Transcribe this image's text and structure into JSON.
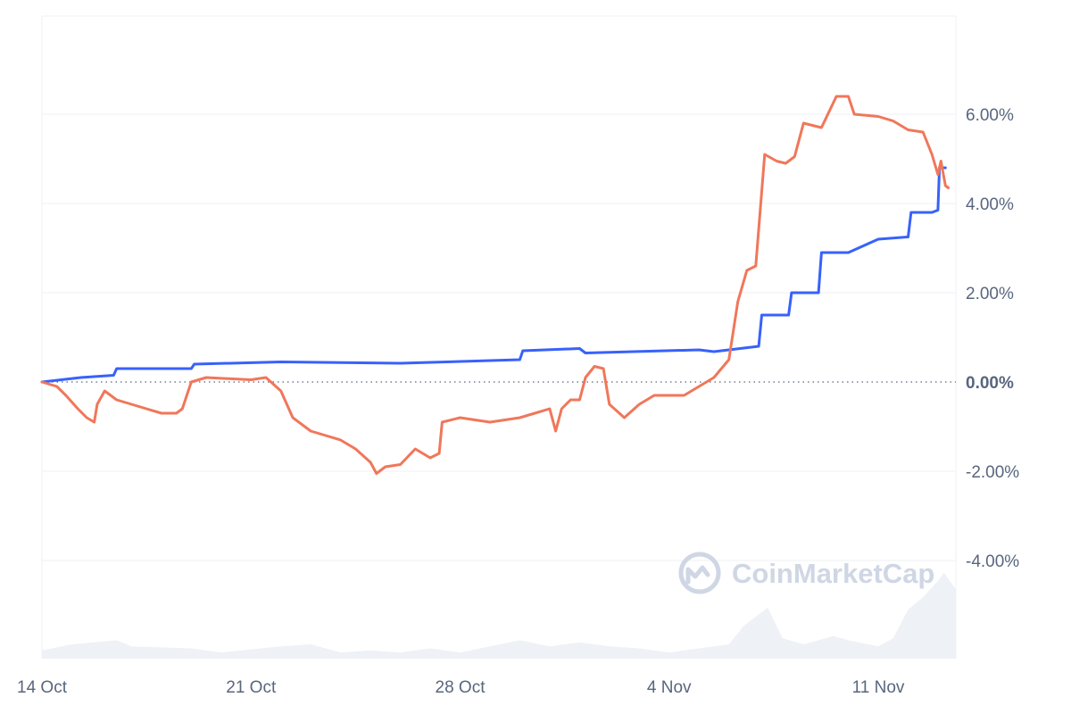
{
  "watermark": {
    "text": "CoinMarketCap"
  },
  "colors": {
    "background": "#ffffff",
    "grid": "#eff2f5",
    "zero_line": "#58667e",
    "volume": "#eef1f5",
    "watermark": "#cfd6e4",
    "series_blue": "#3861fb",
    "series_orange": "#f0775a"
  },
  "chart_data": {
    "type": "line",
    "title": "",
    "xlabel": "",
    "ylabel": "",
    "x_ticks": [
      {
        "label": "14 Oct",
        "day": 0
      },
      {
        "label": "21 Oct",
        "day": 7
      },
      {
        "label": "28 Oct",
        "day": 14
      },
      {
        "label": "4 Nov",
        "day": 21
      },
      {
        "label": "11 Nov",
        "day": 28
      }
    ],
    "y_ticks": [
      {
        "label": "6.00%",
        "value": 6
      },
      {
        "label": "4.00%",
        "value": 4
      },
      {
        "label": "2.00%",
        "value": 2
      },
      {
        "label": "0.00%",
        "value": 0,
        "bold": true
      },
      {
        "label": "-2.00%",
        "value": -2
      },
      {
        "label": "-4.00%",
        "value": -4
      }
    ],
    "xlim": [
      0,
      30.6
    ],
    "ylim": [
      -6.2,
      8.2
    ],
    "grid": true,
    "series": [
      {
        "color": "#3861fb",
        "points": [
          [
            0,
            0
          ],
          [
            1.3,
            0.1
          ],
          [
            2.4,
            0.15
          ],
          [
            2.5,
            0.3
          ],
          [
            5,
            0.3
          ],
          [
            5.1,
            0.4
          ],
          [
            8,
            0.45
          ],
          [
            12,
            0.42
          ],
          [
            16,
            0.5
          ],
          [
            16.1,
            0.7
          ],
          [
            18,
            0.75
          ],
          [
            18.2,
            0.65
          ],
          [
            22,
            0.72
          ],
          [
            22.5,
            0.68
          ],
          [
            24,
            0.8
          ],
          [
            24.1,
            1.5
          ],
          [
            25,
            1.5
          ],
          [
            25.1,
            2.0
          ],
          [
            26,
            2.0
          ],
          [
            26.1,
            2.9
          ],
          [
            27,
            2.9
          ],
          [
            28,
            3.2
          ],
          [
            29,
            3.25
          ],
          [
            29.1,
            3.8
          ],
          [
            29.8,
            3.8
          ],
          [
            30,
            3.85
          ],
          [
            30.05,
            4.8
          ],
          [
            30.25,
            4.8
          ]
        ]
      },
      {
        "color": "#f0775a",
        "points": [
          [
            0,
            0
          ],
          [
            0.5,
            -0.1
          ],
          [
            0.8,
            -0.3
          ],
          [
            1.2,
            -0.6
          ],
          [
            1.5,
            -0.8
          ],
          [
            1.75,
            -0.9
          ],
          [
            1.85,
            -0.5
          ],
          [
            2.1,
            -0.2
          ],
          [
            2.5,
            -0.4
          ],
          [
            3,
            -0.5
          ],
          [
            3.5,
            -0.6
          ],
          [
            4,
            -0.7
          ],
          [
            4.5,
            -0.7
          ],
          [
            4.7,
            -0.6
          ],
          [
            5,
            0.0
          ],
          [
            5.5,
            0.1
          ],
          [
            7,
            0.05
          ],
          [
            7.5,
            0.1
          ],
          [
            8,
            -0.2
          ],
          [
            8.4,
            -0.8
          ],
          [
            9,
            -1.1
          ],
          [
            10,
            -1.3
          ],
          [
            10.5,
            -1.5
          ],
          [
            11,
            -1.8
          ],
          [
            11.2,
            -2.05
          ],
          [
            11.5,
            -1.9
          ],
          [
            12,
            -1.85
          ],
          [
            12.5,
            -1.5
          ],
          [
            13,
            -1.7
          ],
          [
            13.3,
            -1.6
          ],
          [
            13.4,
            -0.9
          ],
          [
            14,
            -0.8
          ],
          [
            15,
            -0.9
          ],
          [
            16,
            -0.8
          ],
          [
            16.5,
            -0.7
          ],
          [
            17,
            -0.6
          ],
          [
            17.2,
            -1.1
          ],
          [
            17.4,
            -0.6
          ],
          [
            17.7,
            -0.4
          ],
          [
            18,
            -0.4
          ],
          [
            18.2,
            0.1
          ],
          [
            18.5,
            0.35
          ],
          [
            18.8,
            0.3
          ],
          [
            19,
            -0.5
          ],
          [
            19.5,
            -0.8
          ],
          [
            20,
            -0.5
          ],
          [
            20.5,
            -0.3
          ],
          [
            21,
            -0.3
          ],
          [
            21.5,
            -0.3
          ],
          [
            22,
            -0.1
          ],
          [
            22.5,
            0.1
          ],
          [
            23,
            0.5
          ],
          [
            23.3,
            1.8
          ],
          [
            23.6,
            2.5
          ],
          [
            23.9,
            2.6
          ],
          [
            24.2,
            5.1
          ],
          [
            24.6,
            4.95
          ],
          [
            24.9,
            4.9
          ],
          [
            25.2,
            5.05
          ],
          [
            25.5,
            5.8
          ],
          [
            26.1,
            5.7
          ],
          [
            26.6,
            6.4
          ],
          [
            27,
            6.4
          ],
          [
            27.2,
            6.0
          ],
          [
            28,
            5.95
          ],
          [
            28.5,
            5.85
          ],
          [
            29,
            5.65
          ],
          [
            29.5,
            5.6
          ],
          [
            29.8,
            5.1
          ],
          [
            30.0,
            4.65
          ],
          [
            30.1,
            4.95
          ],
          [
            30.25,
            4.4
          ],
          [
            30.35,
            4.35
          ]
        ]
      }
    ],
    "volume": [
      [
        0,
        0.2
      ],
      [
        1,
        0.35
      ],
      [
        2.5,
        0.45
      ],
      [
        3,
        0.3
      ],
      [
        5,
        0.25
      ],
      [
        6,
        0.15
      ],
      [
        8,
        0.3
      ],
      [
        9,
        0.35
      ],
      [
        10,
        0.15
      ],
      [
        11,
        0.2
      ],
      [
        12,
        0.15
      ],
      [
        13,
        0.25
      ],
      [
        14,
        0.15
      ],
      [
        15,
        0.3
      ],
      [
        16,
        0.45
      ],
      [
        17,
        0.3
      ],
      [
        18,
        0.4
      ],
      [
        19,
        0.3
      ],
      [
        20,
        0.25
      ],
      [
        21,
        0.15
      ],
      [
        22,
        0.25
      ],
      [
        23,
        0.35
      ],
      [
        23.5,
        0.8
      ],
      [
        24.3,
        1.25
      ],
      [
        24.8,
        0.5
      ],
      [
        25.5,
        0.35
      ],
      [
        26.5,
        0.55
      ],
      [
        27,
        0.45
      ],
      [
        28,
        0.3
      ],
      [
        28.5,
        0.5
      ],
      [
        29,
        1.2
      ],
      [
        29.5,
        1.5
      ],
      [
        30,
        1.9
      ],
      [
        30.2,
        2.1
      ],
      [
        30.6,
        1.7
      ]
    ],
    "volume_max": 2.4
  }
}
